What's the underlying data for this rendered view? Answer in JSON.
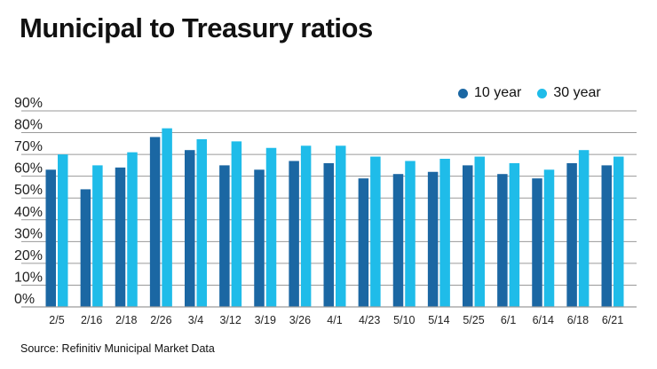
{
  "chart_data": {
    "type": "bar",
    "title": "Municipal to Treasury ratios",
    "source": "Source: Refinitiv Municipal Market Data",
    "xlabel": "",
    "ylabel": "",
    "ylim": [
      0,
      90
    ],
    "yticks": [
      "0%",
      "10%",
      "20%",
      "30%",
      "40%",
      "50%",
      "60%",
      "70%",
      "80%",
      "90%"
    ],
    "grid": true,
    "legend_position": "top-right",
    "categories": [
      "2/5",
      "2/16",
      "2/18",
      "2/26",
      "3/4",
      "3/12",
      "3/19",
      "3/26",
      "4/1",
      "4/23",
      "5/10",
      "5/14",
      "5/25",
      "6/1",
      "6/14",
      "6/18",
      "6/21"
    ],
    "series": [
      {
        "name": "10 year",
        "color": "#1b67a3",
        "values": [
          63,
          54,
          64,
          78,
          72,
          65,
          63,
          67,
          66,
          59,
          61,
          62,
          65,
          61,
          59,
          66,
          65
        ]
      },
      {
        "name": "30 year",
        "color": "#1fbce9",
        "values": [
          70,
          65,
          71,
          82,
          77,
          76,
          73,
          74,
          74,
          69,
          67,
          68,
          69,
          66,
          63,
          72,
          69
        ]
      }
    ]
  }
}
